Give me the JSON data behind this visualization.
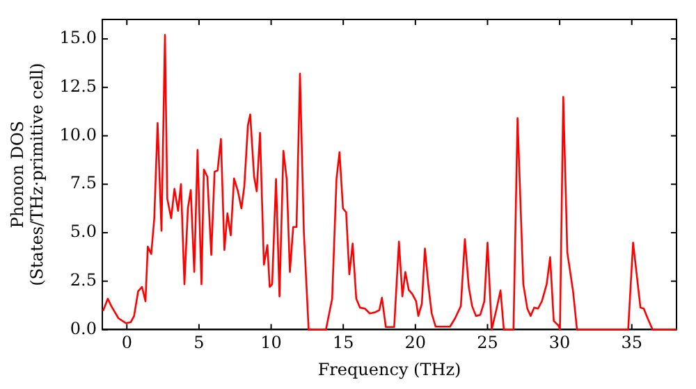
{
  "chart_data": {
    "type": "line",
    "xlabel": "Frequency (THz)",
    "ylabel": "Phonon DOS\n(States/THz·primitive cell)",
    "xlim": [
      -1.7,
      38.1
    ],
    "ylim": [
      0,
      16
    ],
    "xticks": [
      0,
      5,
      10,
      15,
      20,
      25,
      30,
      35
    ],
    "yticks": [
      {
        "value": 0,
        "label": "0.0"
      },
      {
        "value": 2.5,
        "label": "2.5"
      },
      {
        "value": 5,
        "label": "5.0"
      },
      {
        "value": 7.5,
        "label": "7.5"
      },
      {
        "value": 10,
        "label": "10.0"
      },
      {
        "value": 12.5,
        "label": "12.5"
      },
      {
        "value": 15,
        "label": "15.0"
      }
    ],
    "grid": false,
    "legend": false,
    "marker": "none",
    "line_style": "solid",
    "series": [
      {
        "color": "#ff0000",
        "x": [
          -1.65,
          -1.32,
          -1.08,
          -0.58,
          -0.07,
          0.27,
          0.5,
          0.78,
          1.05,
          1.29,
          1.45,
          1.69,
          1.9,
          2.13,
          2.4,
          2.64,
          2.8,
          3.07,
          3.3,
          3.55,
          3.75,
          3.99,
          4.23,
          4.43,
          4.67,
          4.9,
          5.17,
          5.34,
          5.58,
          5.85,
          6.08,
          6.29,
          6.52,
          6.76,
          6.97,
          7.2,
          7.43,
          7.7,
          7.94,
          8.14,
          8.39,
          8.55,
          8.82,
          9.0,
          9.23,
          9.5,
          9.74,
          9.9,
          10.07,
          10.34,
          10.58,
          10.85,
          11.08,
          11.3,
          11.53,
          11.76,
          12.0,
          12.27,
          12.6,
          13.8,
          14.23,
          14.53,
          14.74,
          14.98,
          15.2,
          15.42,
          15.65,
          15.9,
          16.16,
          16.5,
          16.84,
          17.17,
          17.5,
          17.68,
          17.95,
          18.53,
          18.86,
          19.1,
          19.3,
          19.54,
          19.78,
          20.05,
          20.2,
          20.45,
          20.66,
          20.89,
          21.13,
          21.4,
          22.4,
          22.75,
          23.15,
          23.43,
          23.7,
          23.93,
          24.2,
          24.5,
          24.78,
          25.0,
          25.29,
          25.63,
          25.9,
          26.13,
          26.8,
          27.08,
          27.48,
          27.76,
          27.99,
          28.23,
          28.5,
          28.77,
          29.1,
          29.34,
          29.59,
          29.92,
          30.02,
          30.25,
          30.53,
          30.93,
          31.2,
          34.75,
          35.09,
          35.6,
          35.83,
          36.1,
          36.44,
          38.1
        ],
        "values": [
          0.96,
          1.59,
          1.21,
          0.58,
          0.33,
          0.38,
          0.7,
          1.97,
          2.2,
          1.46,
          4.28,
          3.9,
          5.74,
          10.66,
          5.1,
          15.2,
          6.75,
          5.74,
          7.26,
          6.12,
          7.5,
          2.34,
          6.25,
          7.2,
          2.97,
          9.27,
          2.34,
          8.26,
          7.88,
          3.85,
          8.14,
          8.21,
          9.83,
          4.1,
          6.0,
          4.86,
          7.8,
          7.13,
          6.25,
          7.38,
          10.53,
          11.1,
          7.88,
          7.13,
          10.15,
          3.35,
          4.36,
          2.2,
          2.34,
          7.76,
          1.71,
          9.22,
          7.76,
          2.97,
          5.29,
          5.29,
          13.2,
          4.99,
          0,
          0,
          1.59,
          7.76,
          9.15,
          6.25,
          6.05,
          2.85,
          4.44,
          1.59,
          1.13,
          1.08,
          0.83,
          0.88,
          1.0,
          1.64,
          0.13,
          0.13,
          4.54,
          1.71,
          2.97,
          2.04,
          1.84,
          1.46,
          0.7,
          1.34,
          4.18,
          2.34,
          0.83,
          0.15,
          0.15,
          0.58,
          1.21,
          4.66,
          2.2,
          1.21,
          0.7,
          0.76,
          1.46,
          4.48,
          0,
          1.08,
          2.02,
          0,
          0,
          10.91,
          2.34,
          1.08,
          0.7,
          1.13,
          1.08,
          1.46,
          2.34,
          3.73,
          0.45,
          0.2,
          0,
          12.0,
          3.98,
          1.97,
          0,
          0,
          4.48,
          1.13,
          1.08,
          0.58,
          0,
          0
        ]
      }
    ]
  }
}
